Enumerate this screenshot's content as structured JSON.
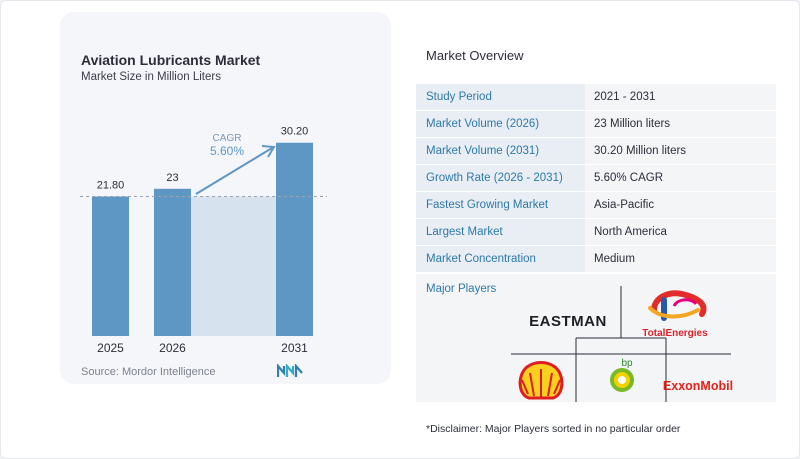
{
  "chart_data": {
    "type": "bar",
    "title": "Aviation Lubricants Market",
    "subtitle": "Market Size in Million Liters",
    "categories": [
      "2025",
      "2026",
      "2031"
    ],
    "values": [
      21.8,
      23,
      30.2
    ],
    "value_labels": [
      "21.80",
      "23",
      "30.20"
    ],
    "cagr_label": "CAGR",
    "cagr_value": "5.60%",
    "colors": {
      "bar": "#5f97c4",
      "band": "#d6e3ef",
      "arrow": "#5f97c4",
      "cagr_text": "#5f97c4"
    }
  },
  "source": "Source:  Mordor Intelligence",
  "overview": {
    "title": "Market Overview",
    "rows": [
      {
        "label": "Study Period",
        "value": "2021 - 2031"
      },
      {
        "label": "Market Volume (2026)",
        "value": "23 Million liters"
      },
      {
        "label": "Market Volume (2031)",
        "value": "30.20 Million liters"
      },
      {
        "label": "Growth Rate (2026 - 2031)",
        "value": "5.60% CAGR"
      },
      {
        "label": "Fastest Growing Market",
        "value": "Asia-Pacific"
      },
      {
        "label": "Largest Market",
        "value": "North America"
      },
      {
        "label": "Market Concentration",
        "value": "Medium"
      }
    ]
  },
  "major_players": {
    "title": "Major Players",
    "logos": [
      "EASTMAN",
      "TotalEnergies",
      "Shell",
      "bp",
      "ExxonMobil"
    ],
    "logo_icons": [
      "eastman-logo",
      "totalenergies-logo",
      "shell-logo",
      "bp-logo",
      "exxonmobil-logo"
    ]
  },
  "disclaimer": "*Disclaimer: Major Players sorted in no particular order"
}
